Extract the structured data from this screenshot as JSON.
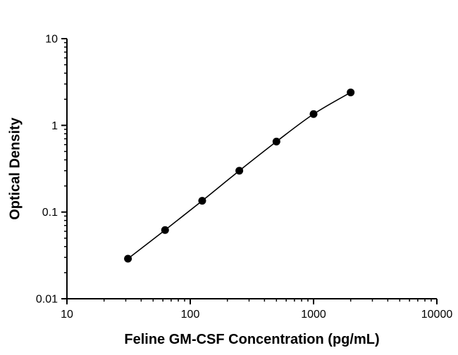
{
  "figure": {
    "background": "#ffffff",
    "axis_color": "#000000",
    "line_color": "#000000",
    "marker_color": "#000000"
  },
  "chart_data": {
    "type": "scatter",
    "title": "",
    "xlabel": "Feline GM-CSF Concentration (pg/mL)",
    "ylabel": "Optical Density",
    "xscale": "log",
    "yscale": "log",
    "xlim": [
      10,
      10000
    ],
    "ylim": [
      0.01,
      10
    ],
    "x": [
      31.25,
      62.5,
      125,
      250,
      500,
      1000,
      2000
    ],
    "y": [
      0.029,
      0.062,
      0.135,
      0.3,
      0.65,
      1.35,
      2.4
    ],
    "xticks": {
      "values": [
        10,
        100,
        1000,
        10000
      ],
      "labels": [
        "10",
        "100",
        "1000",
        "10000"
      ]
    },
    "yticks": {
      "values": [
        0.01,
        0.1,
        1,
        10
      ],
      "labels": [
        "0.01",
        "0.1",
        "1",
        "10"
      ]
    },
    "grid": "off",
    "legend": "none",
    "marker": "filled-circle",
    "line": "smooth"
  }
}
